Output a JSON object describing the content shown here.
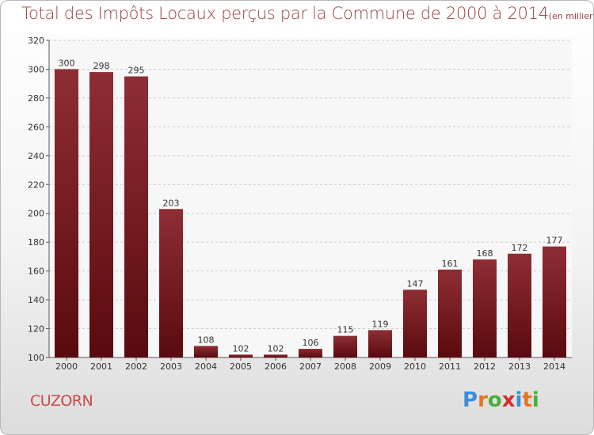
{
  "chart_data": {
    "type": "bar",
    "title": "Total des Impôts Locaux perçus par la Commune de 2000 à 2014",
    "unit": "(en milliers d'€)",
    "categories": [
      "2000",
      "2001",
      "2002",
      "2003",
      "2004",
      "2005",
      "2006",
      "2007",
      "2008",
      "2009",
      "2010",
      "2011",
      "2012",
      "2013",
      "2014"
    ],
    "values": [
      300,
      298,
      295,
      203,
      108,
      102,
      102,
      106,
      115,
      119,
      147,
      161,
      168,
      172,
      177
    ],
    "ylim": [
      100,
      320
    ],
    "yticks": [
      100,
      120,
      140,
      160,
      180,
      200,
      220,
      240,
      260,
      280,
      300,
      320
    ],
    "grid": true,
    "bar_color": "#7a1c22"
  },
  "commune": "CUZORN",
  "logo": {
    "letters": [
      "P",
      "r",
      "o",
      "x",
      "i",
      "t",
      "i"
    ],
    "colors": [
      "#3a8fd8",
      "#e8741f",
      "#4cae3c",
      "#d42f2f",
      "#3a8fd8",
      "#e8741f",
      "#4cae3c"
    ]
  }
}
